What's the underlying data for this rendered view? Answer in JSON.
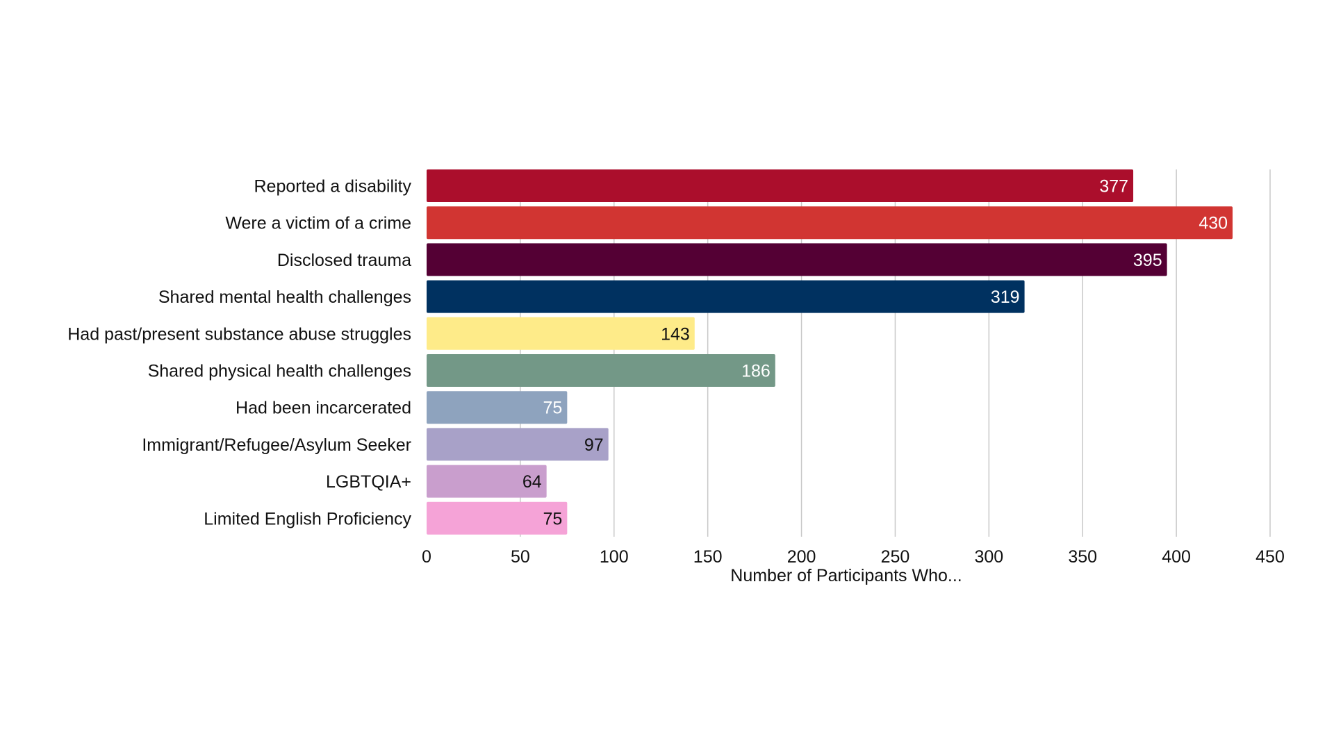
{
  "chart_data": {
    "type": "bar",
    "orientation": "horizontal",
    "title": "",
    "xlabel": "Number of Participants Who...",
    "ylabel": "",
    "xlim": [
      0,
      450
    ],
    "xticks": [
      0,
      50,
      100,
      150,
      200,
      250,
      300,
      350,
      400,
      450
    ],
    "grid": true,
    "legend": "none",
    "categories": [
      "Reported a disability",
      "Were a victim of a crime",
      "Disclosed trauma",
      "Shared mental health challenges",
      "Had past/present substance abuse struggles",
      "Shared physical health challenges",
      "Had been incarcerated",
      "Immigrant/Refugee/Asylum Seeker",
      "LGBTQIA+",
      "Limited English Proficiency"
    ],
    "values": [
      377,
      430,
      395,
      319,
      143,
      186,
      75,
      97,
      64,
      75
    ],
    "colors": [
      "#ab0e2c",
      "#d13532",
      "#540034",
      "#003160",
      "#feeb89",
      "#739887",
      "#8ea3be",
      "#a8a1c8",
      "#c99ecd",
      "#f5a3d7"
    ],
    "label_colors": [
      "#ffffff",
      "#ffffff",
      "#ffffff",
      "#ffffff",
      "#111111",
      "#ffffff",
      "#ffffff",
      "#111111",
      "#111111",
      "#111111"
    ]
  }
}
